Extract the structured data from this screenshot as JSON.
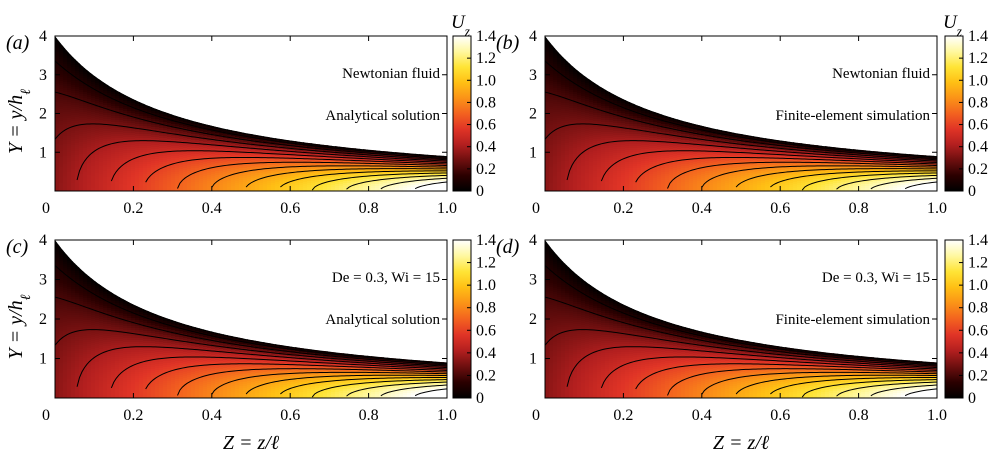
{
  "figure": {
    "x_axis_label": "Z = z/ℓ",
    "y_axis_label": "Y = y/hℓ",
    "colorbar_title": "Uz",
    "colors": {
      "colormap": [
        "#000000",
        "#2b0000",
        "#6e0f0f",
        "#b31f1f",
        "#e03426",
        "#f3621f",
        "#fb9317",
        "#ffbf14",
        "#ffe436",
        "#fff8a0",
        "#ffffff"
      ],
      "contour_line": "#000000",
      "frame": "#000000"
    }
  },
  "chart_data": [
    {
      "type": "heatmap",
      "panel": "(a)",
      "annotations": [
        "Newtonian fluid",
        "Analytical solution"
      ],
      "xlim": [
        0,
        1.0
      ],
      "ylim": [
        0,
        4
      ],
      "xticks": [
        "0",
        "0.2",
        "0.4",
        "0.6",
        "0.8",
        "1.0"
      ],
      "yticks": [
        "1",
        "2",
        "3",
        "4"
      ],
      "colorbar_title": "Uz",
      "colorbar_ticks": [
        "0",
        "0.2",
        "0.4",
        "0.6",
        "0.8",
        "1.0",
        "1.2",
        "1.4"
      ],
      "colorbar_range": [
        0,
        1.4
      ],
      "channel_height_at_Z0": 4.0,
      "channel_height_at_Z1": 0.9,
      "contour_levels": [
        0.1,
        0.2,
        0.3,
        0.4,
        0.5,
        0.6,
        0.7,
        0.8,
        0.9,
        1.0,
        1.1,
        1.2,
        1.3,
        1.4
      ]
    },
    {
      "type": "heatmap",
      "panel": "(b)",
      "annotations": [
        "Newtonian fluid",
        "Finite-element simulation"
      ],
      "xlim": [
        0,
        1.0
      ],
      "ylim": [
        0,
        4
      ],
      "xticks": [
        "0",
        "0.2",
        "0.4",
        "0.6",
        "0.8",
        "1.0"
      ],
      "yticks": [
        "1",
        "2",
        "3",
        "4"
      ],
      "colorbar_title": "Uz",
      "colorbar_ticks": [
        "0",
        "0.2",
        "0.4",
        "0.6",
        "0.8",
        "1.0",
        "1.2",
        "1.4"
      ],
      "colorbar_range": [
        0,
        1.4
      ],
      "channel_height_at_Z0": 4.0,
      "channel_height_at_Z1": 0.9,
      "contour_levels": [
        0.1,
        0.2,
        0.3,
        0.4,
        0.5,
        0.6,
        0.7,
        0.8,
        0.9,
        1.0,
        1.1,
        1.2,
        1.3,
        1.4
      ]
    },
    {
      "type": "heatmap",
      "panel": "(c)",
      "annotations": [
        "De = 0.3, Wi = 15",
        "Analytical solution"
      ],
      "xlim": [
        0,
        1.0
      ],
      "ylim": [
        0,
        4
      ],
      "xticks": [
        "0",
        "0.2",
        "0.4",
        "0.6",
        "0.8",
        "1.0"
      ],
      "yticks": [
        "1",
        "2",
        "3",
        "4"
      ],
      "colorbar_title": "",
      "colorbar_ticks": [
        "0",
        "0.2",
        "0.4",
        "0.6",
        "0.8",
        "1.0",
        "1.2",
        "1.4"
      ],
      "colorbar_range": [
        0,
        1.4
      ],
      "channel_height_at_Z0": 4.0,
      "channel_height_at_Z1": 0.9,
      "contour_levels": [
        0.1,
        0.2,
        0.3,
        0.4,
        0.5,
        0.6,
        0.7,
        0.8,
        0.9,
        1.0,
        1.1,
        1.2,
        1.3,
        1.4
      ]
    },
    {
      "type": "heatmap",
      "panel": "(d)",
      "annotations": [
        "De = 0.3, Wi = 15",
        "Finite-element simulation"
      ],
      "xlim": [
        0,
        1.0
      ],
      "ylim": [
        0,
        4
      ],
      "xticks": [
        "0",
        "0.2",
        "0.4",
        "0.6",
        "0.8",
        "1.0"
      ],
      "yticks": [
        "1",
        "2",
        "3",
        "4"
      ],
      "colorbar_title": "",
      "colorbar_ticks": [
        "0",
        "0.2",
        "0.4",
        "0.6",
        "0.8",
        "1.0",
        "1.2",
        "1.4"
      ],
      "colorbar_range": [
        0,
        1.4
      ],
      "channel_height_at_Z0": 4.0,
      "channel_height_at_Z1": 0.9,
      "contour_levels": [
        0.1,
        0.2,
        0.3,
        0.4,
        0.5,
        0.6,
        0.7,
        0.8,
        0.9,
        1.0,
        1.1,
        1.2,
        1.3,
        1.4
      ]
    }
  ]
}
